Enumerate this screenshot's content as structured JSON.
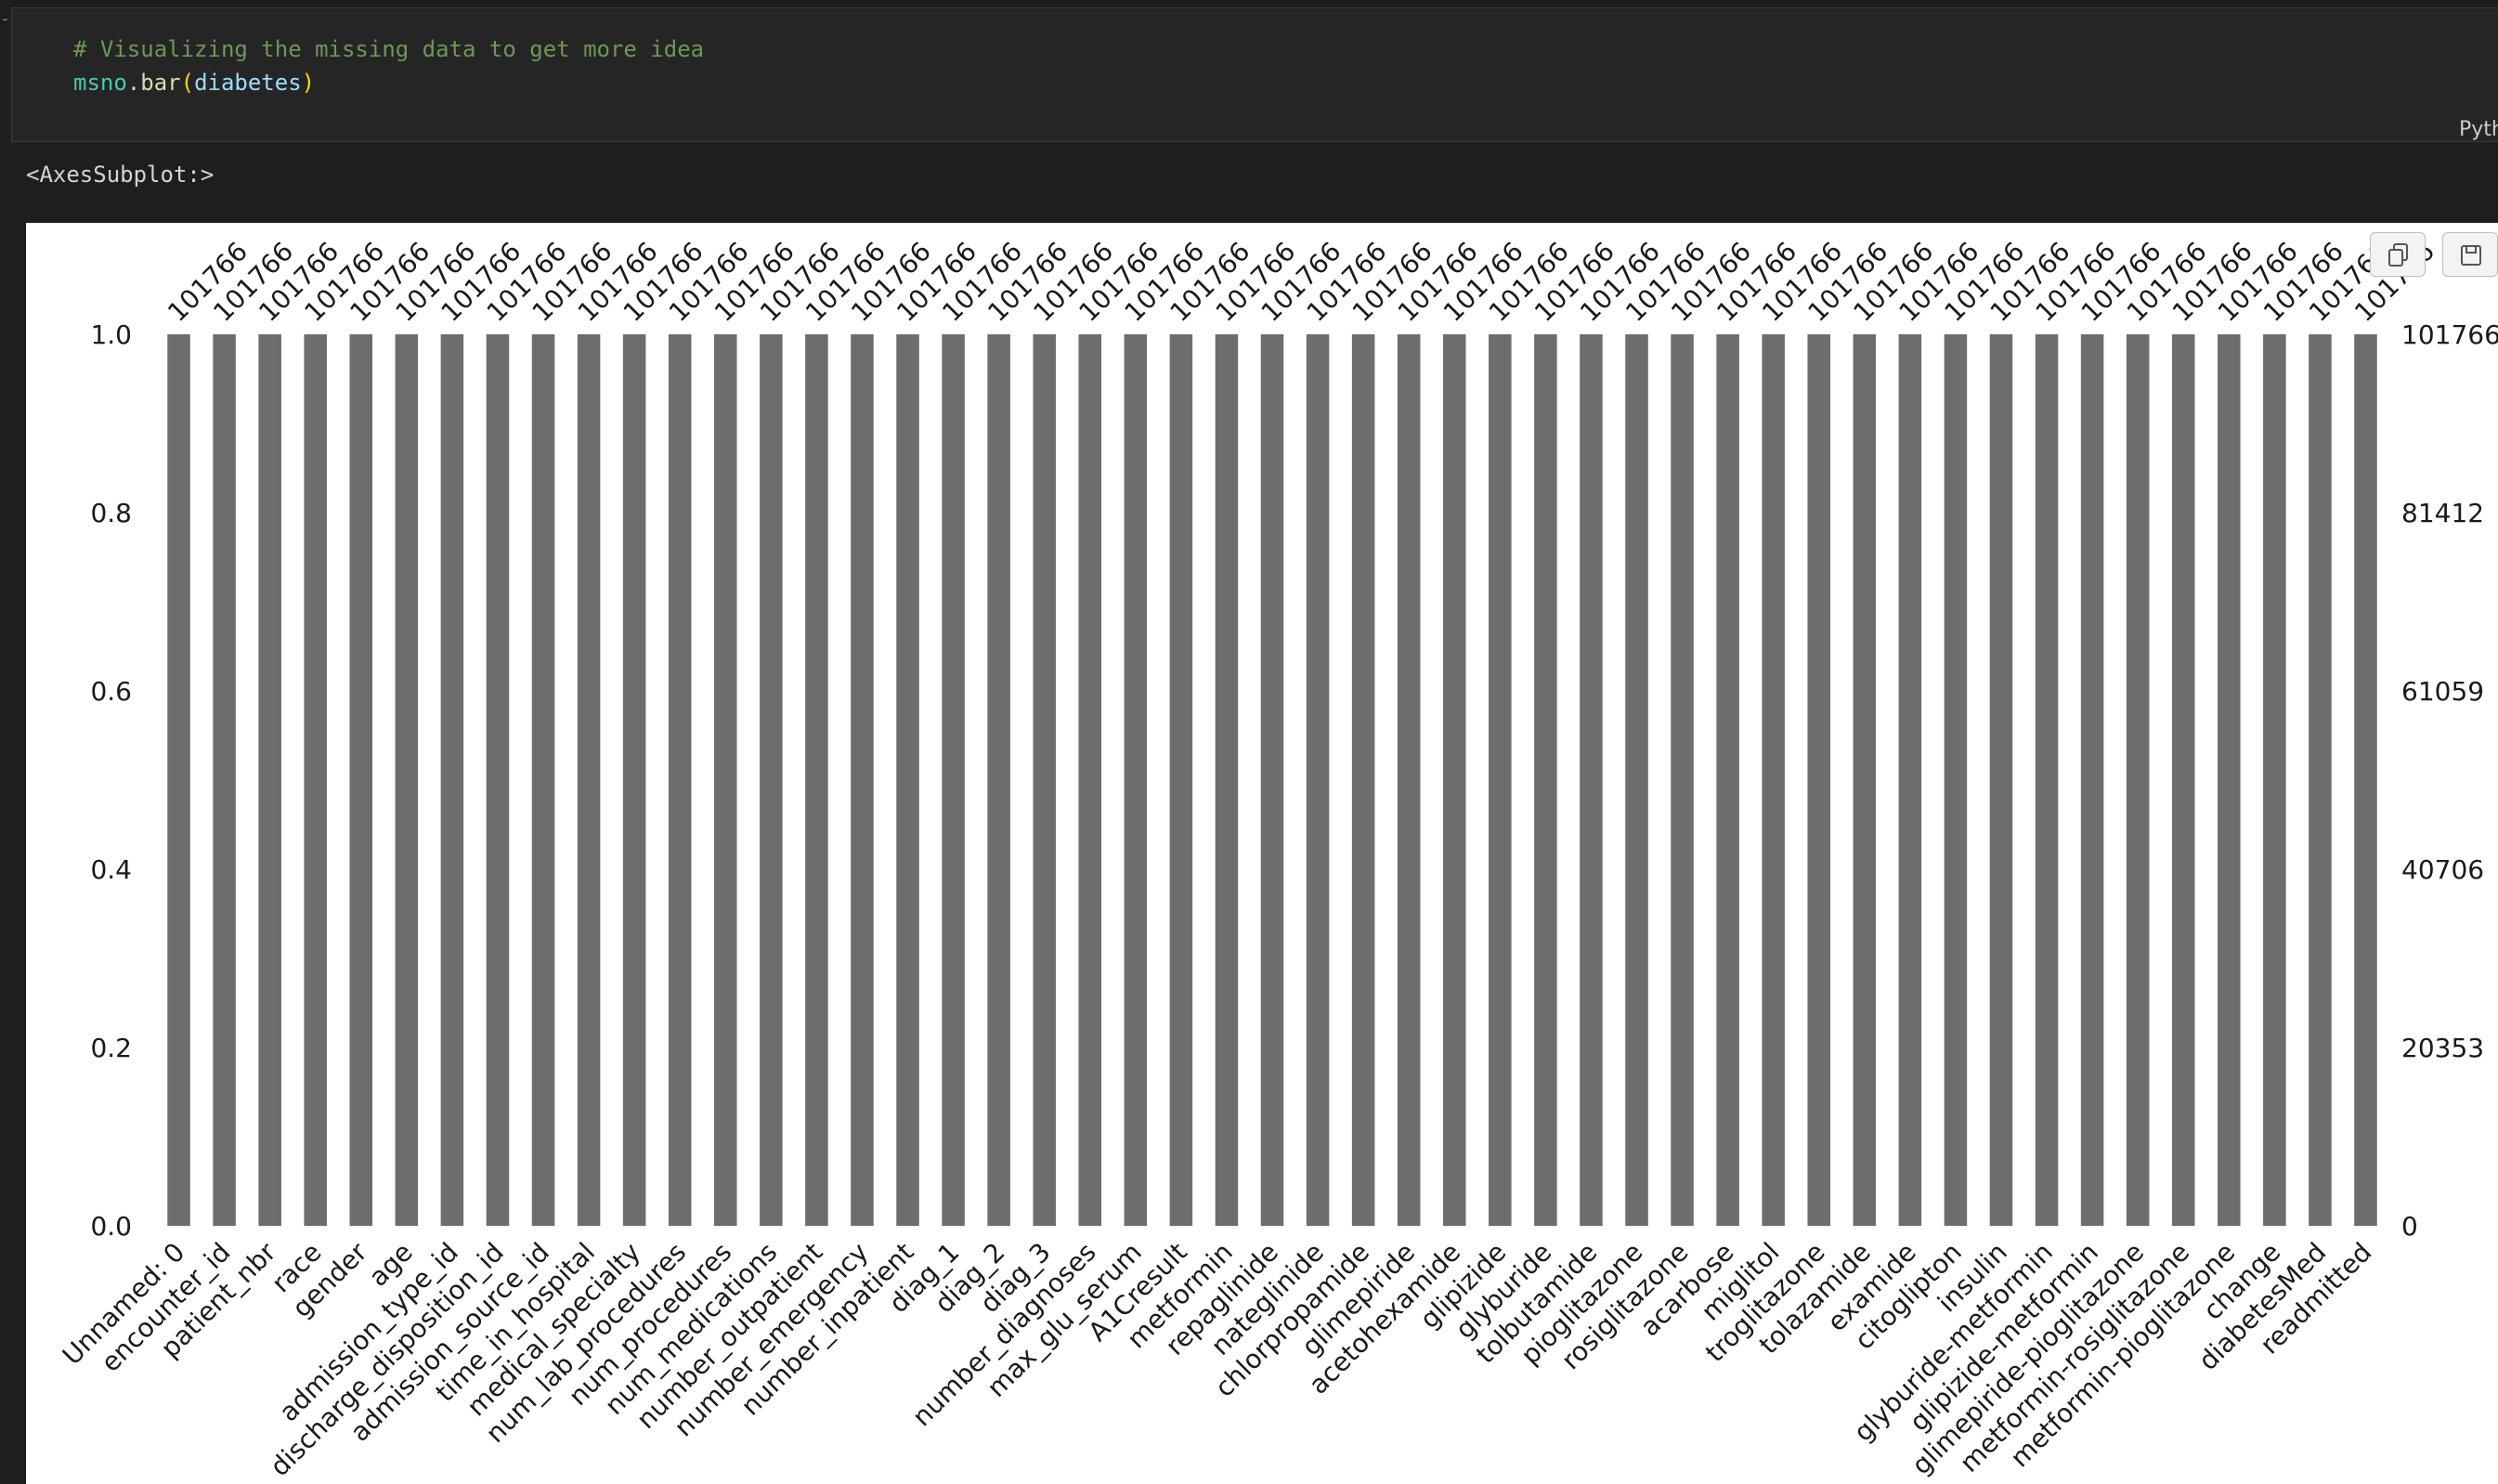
{
  "notebook": {
    "gutter_mark": "-",
    "cell": {
      "code_comment": "# Visualizing the missing data to get more idea",
      "code_tokens": {
        "module": "msno",
        "dot": ".",
        "func": "bar",
        "open_paren": "(",
        "arg": "diabetes",
        "close_paren": ")"
      },
      "language_label": "Pyth"
    },
    "output": {
      "repr_text": "<AxesSubplot:>",
      "toolbar": {
        "copy_icon": "copy-icon",
        "save_icon": "save-icon"
      }
    }
  },
  "chart_data": {
    "type": "bar",
    "categories": [
      "Unnamed: 0",
      "encounter_id",
      "patient_nbr",
      "race",
      "gender",
      "age",
      "admission_type_id",
      "discharge_disposition_id",
      "admission_source_id",
      "time_in_hospital",
      "medical_specialty",
      "num_lab_procedures",
      "num_procedures",
      "num_medications",
      "number_outpatient",
      "number_emergency",
      "number_inpatient",
      "diag_1",
      "diag_2",
      "diag_3",
      "number_diagnoses",
      "max_glu_serum",
      "A1Cresult",
      "metformin",
      "repaglinide",
      "nateglinide",
      "chlorpropamide",
      "glimepiride",
      "acetohexamide",
      "glipizide",
      "glyburide",
      "tolbutamide",
      "pioglitazone",
      "rosiglitazone",
      "acarbose",
      "miglitol",
      "troglitazone",
      "tolazamide",
      "examide",
      "citoglipton",
      "insulin",
      "glyburide-metformin",
      "glipizide-metformin",
      "glimepiride-pioglitazone",
      "metformin-rosiglitazone",
      "metformin-pioglitazone",
      "change",
      "diabetesMed",
      "readmitted"
    ],
    "values": [
      101766,
      101766,
      101766,
      101766,
      101766,
      101766,
      101766,
      101766,
      101766,
      101766,
      101766,
      101766,
      101766,
      101766,
      101766,
      101766,
      101766,
      101766,
      101766,
      101766,
      101766,
      101766,
      101766,
      101766,
      101766,
      101766,
      101766,
      101766,
      101766,
      101766,
      101766,
      101766,
      101766,
      101766,
      101766,
      101766,
      101766,
      101766,
      101766,
      101766,
      101766,
      101766,
      101766,
      101766,
      101766,
      101766,
      101766,
      101766,
      101766
    ],
    "total_rows": 101766,
    "ylim": [
      0,
      1.0
    ],
    "left_ticks": [
      "0.0",
      "0.2",
      "0.4",
      "0.6",
      "0.8",
      "1.0"
    ],
    "right_ticks": [
      "0",
      "20353",
      "40706",
      "61059",
      "81412",
      "101766"
    ],
    "bar_color": "#6d6d6d",
    "grid": false,
    "xlabel": "",
    "ylabel": ""
  }
}
